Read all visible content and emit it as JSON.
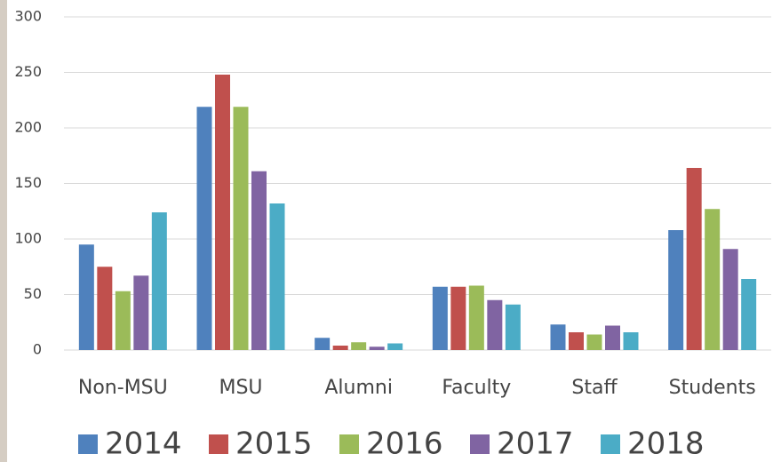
{
  "chart_data": {
    "type": "bar",
    "categories": [
      "Non-MSU",
      "MSU",
      "Alumni",
      "Faculty",
      "Staff",
      "Students"
    ],
    "series": [
      {
        "name": "2014",
        "color": "#4f81bd",
        "values": [
          95,
          219,
          11,
          57,
          23,
          108
        ]
      },
      {
        "name": "2015",
        "color": "#c0504d",
        "values": [
          75,
          248,
          4,
          57,
          16,
          164
        ]
      },
      {
        "name": "2016",
        "color": "#9bbb59",
        "values": [
          53,
          219,
          7,
          58,
          14,
          127
        ]
      },
      {
        "name": "2017",
        "color": "#8064a2",
        "values": [
          67,
          161,
          3,
          45,
          22,
          91
        ]
      },
      {
        "name": "2018",
        "color": "#4bacc6",
        "values": [
          124,
          132,
          6,
          41,
          16,
          64
        ]
      }
    ],
    "ylim": [
      0,
      300
    ],
    "yticks": [
      0,
      50,
      100,
      150,
      200,
      250,
      300
    ],
    "grid": true,
    "legend": "bottom"
  }
}
